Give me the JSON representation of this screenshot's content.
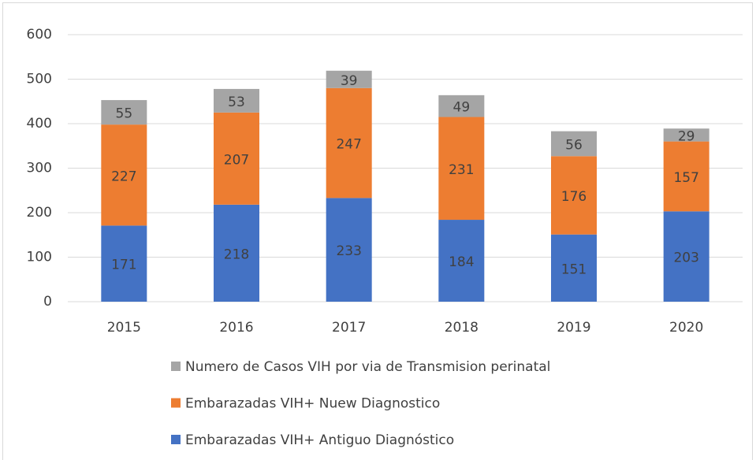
{
  "chart_data": {
    "type": "stacked_bar",
    "categories": [
      "2015",
      "2016",
      "2017",
      "2018",
      "2019",
      "2020"
    ],
    "series": [
      {
        "name": "Embarazadas VIH+ Antiguo Diagnóstico",
        "color": "#4472c4",
        "values": [
          171,
          218,
          233,
          184,
          151,
          203
        ]
      },
      {
        "name": "Embarazadas VIH+ Nuew Diagnostico",
        "color": "#ed7d31",
        "values": [
          227,
          207,
          247,
          231,
          176,
          157
        ]
      },
      {
        "name": "Numero de Casos VIH por via de Transmision perinatal",
        "color": "#a5a5a5",
        "values": [
          55,
          53,
          39,
          49,
          56,
          29
        ]
      }
    ],
    "ylim": [
      0,
      600
    ],
    "yticks": [
      0,
      100,
      200,
      300,
      400,
      500,
      600
    ],
    "grid": true,
    "legend": "bottom"
  }
}
